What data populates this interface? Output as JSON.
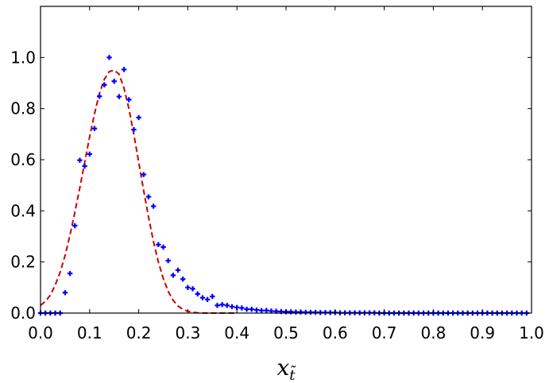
{
  "chart_data": {
    "type": "scatter",
    "title": "",
    "xlabel": "x",
    "xlabel_subscript": "t̃",
    "ylabel": "",
    "xlim": [
      0.0,
      1.0
    ],
    "ylim": [
      0.0,
      1.2
    ],
    "grid": false,
    "legend": "none",
    "xticks": [
      "0.0",
      "0.1",
      "0.2",
      "0.3",
      "0.4",
      "0.5",
      "0.6",
      "0.7",
      "0.8",
      "0.9",
      "1.0"
    ],
    "yticks": [
      "0.0",
      "0.2",
      "0.4",
      "0.6",
      "0.8",
      "1.0"
    ],
    "series": [
      {
        "kind": "points",
        "color": "#0000ff",
        "marker": "plus",
        "x": [
          0.0,
          0.01,
          0.02,
          0.03,
          0.04,
          0.05,
          0.06,
          0.07,
          0.08,
          0.09,
          0.1,
          0.11,
          0.12,
          0.13,
          0.14,
          0.15,
          0.16,
          0.17,
          0.18,
          0.19,
          0.2,
          0.21,
          0.22,
          0.23,
          0.24,
          0.25,
          0.26,
          0.27,
          0.28,
          0.29,
          0.3,
          0.31,
          0.32,
          0.33,
          0.34,
          0.35,
          0.36,
          0.37,
          0.38,
          0.39,
          0.4,
          0.41,
          0.42,
          0.43,
          0.44,
          0.45,
          0.46,
          0.47,
          0.48,
          0.49,
          0.5,
          0.51,
          0.52,
          0.53,
          0.54,
          0.55,
          0.56,
          0.57,
          0.58,
          0.59,
          0.6,
          0.61,
          0.62,
          0.63,
          0.64,
          0.65,
          0.66,
          0.67,
          0.68,
          0.69,
          0.7,
          0.71,
          0.72,
          0.73,
          0.74,
          0.75,
          0.76,
          0.77,
          0.78,
          0.79,
          0.8,
          0.81,
          0.82,
          0.83,
          0.84,
          0.85,
          0.86,
          0.87,
          0.88,
          0.89,
          0.9,
          0.91,
          0.92,
          0.93,
          0.94,
          0.95,
          0.96,
          0.97,
          0.98,
          0.99
        ],
        "y": [
          0.0,
          0.0,
          0.0,
          0.0,
          0.0,
          0.08,
          0.155,
          0.342,
          0.598,
          0.575,
          0.622,
          0.722,
          0.848,
          0.893,
          1.0,
          0.907,
          0.847,
          0.953,
          0.835,
          0.718,
          0.765,
          0.542,
          0.455,
          0.418,
          0.268,
          0.258,
          0.205,
          0.148,
          0.168,
          0.133,
          0.1,
          0.095,
          0.075,
          0.06,
          0.053,
          0.065,
          0.03,
          0.033,
          0.03,
          0.025,
          0.022,
          0.02,
          0.015,
          0.015,
          0.012,
          0.01,
          0.01,
          0.008,
          0.007,
          0.006,
          0.005,
          0.005,
          0.004,
          0.004,
          0.003,
          0.003,
          0.003,
          0.002,
          0.002,
          0.002,
          0.002,
          0.001,
          0.001,
          0.001,
          0.001,
          0.001,
          0.001,
          0.001,
          0.001,
          0.0,
          0.0,
          0.0,
          0.0,
          0.0,
          0.0,
          0.0,
          0.0,
          0.0,
          0.0,
          0.0,
          0.0,
          0.0,
          0.0,
          0.0,
          0.0,
          0.0,
          0.0,
          0.0,
          0.0,
          0.0,
          0.0,
          0.0,
          0.0,
          0.0,
          0.0,
          0.0,
          0.0,
          0.0,
          0.0,
          0.0
        ]
      },
      {
        "kind": "line",
        "color": "#cc0000",
        "style": "dashed",
        "x": [
          0.0,
          0.01,
          0.02,
          0.03,
          0.04,
          0.05,
          0.06,
          0.07,
          0.08,
          0.09,
          0.1,
          0.11,
          0.12,
          0.13,
          0.14,
          0.15,
          0.16,
          0.17,
          0.18,
          0.19,
          0.2,
          0.21,
          0.22,
          0.23,
          0.24,
          0.25,
          0.26,
          0.27,
          0.28,
          0.29,
          0.3,
          0.31,
          0.32,
          0.33,
          0.34,
          0.35,
          0.36,
          0.37,
          0.38,
          0.39,
          0.4
        ],
        "y": [
          0.03,
          0.046,
          0.07,
          0.11,
          0.16,
          0.225,
          0.305,
          0.395,
          0.49,
          0.59,
          0.69,
          0.78,
          0.86,
          0.915,
          0.945,
          0.95,
          0.935,
          0.88,
          0.8,
          0.7,
          0.59,
          0.48,
          0.375,
          0.28,
          0.2,
          0.135,
          0.085,
          0.05,
          0.028,
          0.014,
          0.007,
          0.003,
          0.001,
          0.0,
          0.0,
          0.0,
          0.0,
          0.0,
          0.0,
          0.0,
          0.0
        ]
      }
    ]
  }
}
